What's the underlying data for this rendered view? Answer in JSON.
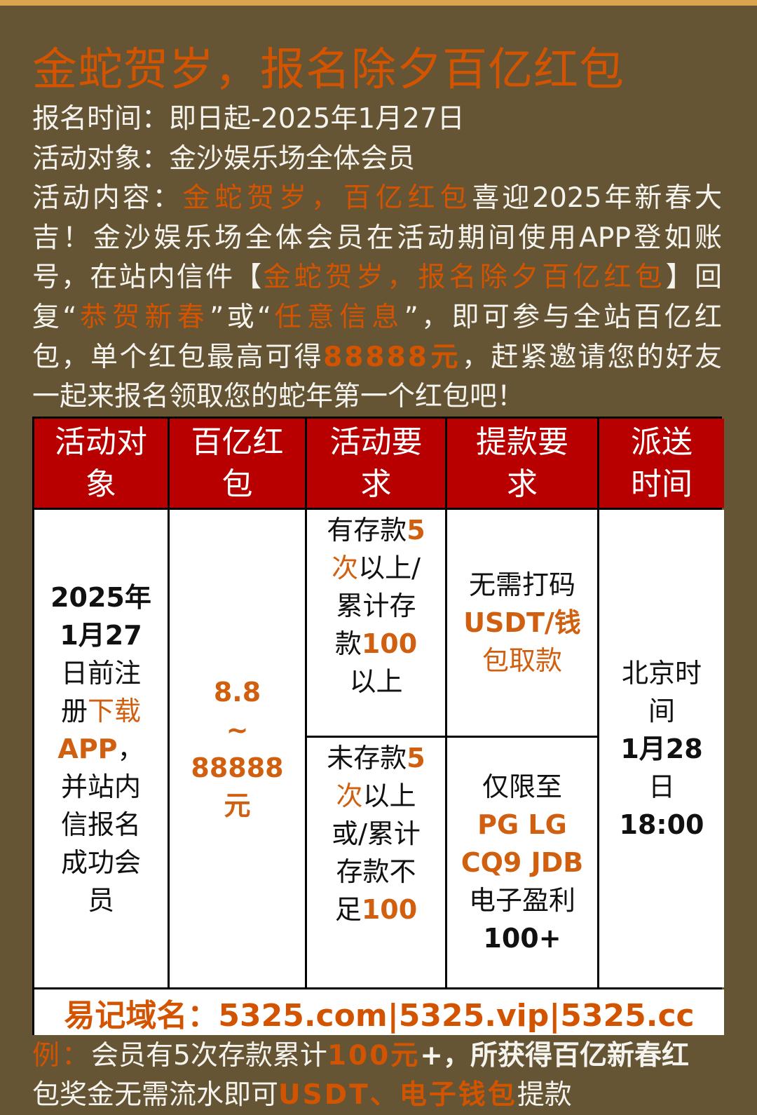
{
  "colors": {
    "background": "#655535",
    "accent": "#d35400",
    "header_red": "#b80000",
    "top_band": "#d9a54f"
  },
  "title": "金蛇贺岁，报名除夕百亿红包",
  "info": {
    "lines": [
      [
        {
          "t": "报名时间：即日起-2025年1月27日"
        }
      ],
      [
        {
          "t": "活动对象：金沙娱乐场全体会员"
        }
      ],
      [
        {
          "t": "活动内容："
        },
        {
          "t": "金蛇贺岁，百亿红包",
          "hl": true
        },
        {
          "t": "喜迎2025年新春大"
        }
      ],
      [
        {
          "t": "吉！金沙娱乐场全体会员在活动期间使用APP登如账"
        }
      ],
      [
        {
          "t": "号，在站内信件【"
        },
        {
          "t": "金蛇贺岁，报名除夕百亿红包",
          "hl": true
        },
        {
          "t": "】回"
        }
      ],
      [
        {
          "t": "复“"
        },
        {
          "t": "恭贺新春",
          "hl": true
        },
        {
          "t": "”或“"
        },
        {
          "t": "任意信息",
          "hl": true
        },
        {
          "t": "”，即可参与全站百亿红"
        }
      ],
      [
        {
          "t": "包，单个红包最高可得"
        },
        {
          "t": "88888元",
          "hl": true
        },
        {
          "t": "，赶紧邀请您的好友"
        }
      ],
      [
        {
          "t": "一起来报名领取您的蛇年第一个红包吧！"
        }
      ]
    ]
  },
  "table": {
    "headers": [
      [
        "活动对",
        "象"
      ],
      [
        "百亿红",
        "包"
      ],
      [
        "活动要",
        "求"
      ],
      [
        "提款要",
        "求"
      ],
      [
        "派送",
        "时间"
      ]
    ],
    "cells": {
      "target": [
        [
          {
            "t": "2025年"
          }
        ],
        [
          {
            "t": "1月27"
          }
        ],
        [
          {
            "t": "日前注"
          }
        ],
        [
          {
            "t": "册"
          },
          {
            "t": "下载",
            "o": true
          }
        ],
        [
          {
            "t": "APP",
            "o": true
          },
          {
            "t": "，"
          }
        ],
        [
          {
            "t": "并站内"
          }
        ],
        [
          {
            "t": "信报名"
          }
        ],
        [
          {
            "t": "成功会"
          }
        ],
        [
          {
            "t": "员"
          }
        ]
      ],
      "amount": [
        [
          {
            "t": "8.8",
            "o": true
          }
        ],
        [
          {
            "t": "~",
            "o": true
          }
        ],
        [
          {
            "t": "88888",
            "o": true
          }
        ],
        [
          {
            "t": "元",
            "o": true
          }
        ]
      ],
      "req_deposit": [
        [
          {
            "t": "有存款"
          },
          {
            "t": "5",
            "o": true
          }
        ],
        [
          {
            "t": "次",
            "o": true
          },
          {
            "t": "以上/"
          }
        ],
        [
          {
            "t": "累计存"
          }
        ],
        [
          {
            "t": "款"
          },
          {
            "t": "100",
            "o": true
          }
        ],
        [
          {
            "t": "以上"
          }
        ]
      ],
      "req_no_deposit": [
        [
          {
            "t": "未存款"
          },
          {
            "t": "5",
            "o": true
          }
        ],
        [
          {
            "t": "次",
            "o": true
          },
          {
            "t": "以上"
          }
        ],
        [
          {
            "t": "或/累计"
          }
        ],
        [
          {
            "t": "存款不"
          }
        ],
        [
          {
            "t": "足"
          },
          {
            "t": "100",
            "o": true
          }
        ]
      ],
      "withdraw_deposit": [
        [
          {
            "t": "无需打码"
          }
        ],
        [
          {
            "t": "USDT/钱",
            "o": true
          }
        ],
        [
          {
            "t": "包取款",
            "o": true
          }
        ]
      ],
      "withdraw_no_deposit": [
        [
          {
            "t": "仅限至"
          }
        ],
        [
          {
            "t": "PG LG",
            "o": true
          }
        ],
        [
          {
            "t": "CQ9 JDB",
            "o": true
          }
        ],
        [
          {
            "t": "电子盈利"
          }
        ],
        [
          {
            "t": "100+"
          }
        ]
      ],
      "time": [
        [
          {
            "t": "北京时"
          }
        ],
        [
          {
            "t": "间"
          }
        ],
        [
          {
            "t": "1月28"
          }
        ],
        [
          {
            "t": "日"
          }
        ],
        [
          {
            "t": "18:00"
          }
        ]
      ]
    },
    "footer": "易记域名：5325.com|5325.vip|5325.cc"
  },
  "example": {
    "lines": [
      [
        {
          "t": "例：",
          "hl": true
        },
        {
          "t": "会员有5次存款累计"
        },
        {
          "t": "100元",
          "hl": true
        },
        {
          "t": "+，所获得百亿新春红"
        }
      ],
      [
        {
          "t": "包奖金无需流水即可"
        },
        {
          "t": "USDT、电子钱包",
          "hl": true
        },
        {
          "t": "提款"
        }
      ]
    ]
  }
}
